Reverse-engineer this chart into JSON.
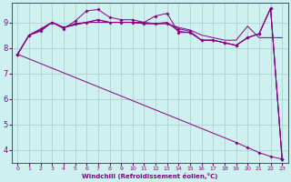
{
  "xlabel": "Windchill (Refroidissement éolien,°C)",
  "bg_color": "#cef0ee",
  "grid_color": "#aacccc",
  "line_color": "#880088",
  "xlim": [
    -0.5,
    23.5
  ],
  "ylim": [
    3.5,
    9.75
  ],
  "xticks": [
    0,
    1,
    2,
    3,
    4,
    5,
    6,
    7,
    8,
    9,
    10,
    11,
    12,
    13,
    14,
    15,
    16,
    17,
    18,
    19,
    20,
    21,
    22,
    23
  ],
  "yticks": [
    4,
    5,
    6,
    7,
    8,
    9
  ],
  "series": [
    {
      "x": [
        0,
        1,
        2,
        3,
        4,
        5,
        6,
        7,
        8,
        9,
        10,
        11,
        12,
        13,
        14,
        15,
        16,
        17,
        18,
        19,
        20,
        21,
        22,
        23
      ],
      "y": [
        7.75,
        8.5,
        8.65,
        9.0,
        8.75,
        9.05,
        9.45,
        9.5,
        9.2,
        9.1,
        9.1,
        9.0,
        9.25,
        9.35,
        8.6,
        8.6,
        8.3,
        8.3,
        8.2,
        8.1,
        8.4,
        8.55,
        9.55,
        3.65
      ],
      "marker": true
    },
    {
      "x": [
        0,
        1,
        2,
        3,
        4,
        5,
        6,
        7,
        8,
        9,
        10,
        11,
        12,
        13,
        14,
        15,
        16,
        17,
        18,
        19,
        20,
        21,
        22,
        23
      ],
      "y": [
        7.75,
        8.5,
        8.7,
        9.0,
        8.8,
        8.9,
        9.0,
        9.0,
        9.0,
        9.0,
        9.0,
        9.0,
        8.95,
        8.95,
        8.8,
        8.7,
        8.5,
        8.4,
        8.3,
        8.3,
        8.85,
        8.4,
        8.4,
        8.4
      ],
      "marker": false
    },
    {
      "x": [
        0,
        1,
        2,
        3,
        4,
        5,
        6,
        7,
        8,
        9,
        10,
        11,
        12,
        13,
        14,
        15,
        16,
        17,
        18,
        19,
        20,
        21,
        22,
        23
      ],
      "y": [
        7.75,
        8.5,
        8.7,
        9.0,
        8.8,
        8.9,
        9.0,
        9.1,
        9.0,
        9.0,
        9.0,
        8.95,
        8.95,
        9.0,
        8.65,
        8.6,
        8.3,
        8.3,
        8.2,
        8.1,
        8.4,
        8.55,
        9.55,
        3.65
      ],
      "marker": false
    },
    {
      "x": [
        0,
        1,
        2,
        3,
        4,
        5,
        6,
        7,
        8,
        9,
        10,
        11,
        12,
        13,
        14,
        15,
        16,
        17,
        18,
        19,
        20,
        21,
        22,
        23
      ],
      "y": [
        7.75,
        8.5,
        8.75,
        9.0,
        8.8,
        8.95,
        9.0,
        9.1,
        9.0,
        9.0,
        9.0,
        8.95,
        8.95,
        8.95,
        8.75,
        8.65,
        8.3,
        8.3,
        8.2,
        8.1,
        8.4,
        8.55,
        9.55,
        3.65
      ],
      "marker": true
    },
    {
      "x": [
        0,
        19,
        20,
        21,
        22,
        23
      ],
      "y": [
        7.75,
        4.3,
        4.1,
        3.9,
        3.75,
        3.65
      ],
      "marker": true,
      "diagonal": true
    }
  ]
}
